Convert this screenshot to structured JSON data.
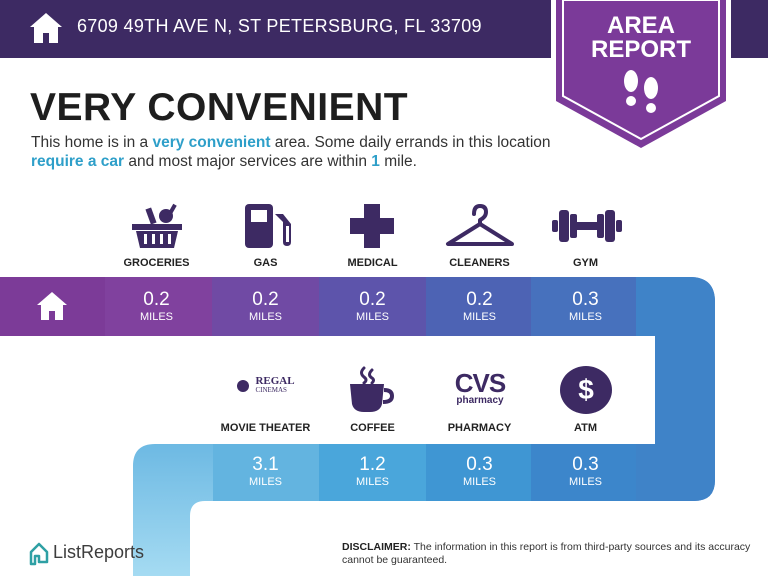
{
  "header": {
    "address": "6709 49TH AVE N, ST PETERSBURG, FL 33709"
  },
  "badge": {
    "line1": "AREA",
    "line2": "REPORT",
    "icon": "footprints-icon"
  },
  "title": "VERY CONVENIENT",
  "description": {
    "part1": "This home is in a ",
    "hl1": "very convenient",
    "part2": " area. Some daily errands in this location ",
    "hl2": "require a car",
    "part3": " and most major services are within ",
    "hl3": "1",
    "part4": " mile."
  },
  "row1": [
    {
      "label": "GROCERIES",
      "icon": "grocery-basket-icon",
      "value": "0.2",
      "unit": "MILES"
    },
    {
      "label": "GAS",
      "icon": "gas-pump-icon",
      "value": "0.2",
      "unit": "MILES"
    },
    {
      "label": "MEDICAL",
      "icon": "medical-cross-icon",
      "value": "0.2",
      "unit": "MILES"
    },
    {
      "label": "CLEANERS",
      "icon": "hanger-icon",
      "value": "0.2",
      "unit": "MILES"
    },
    {
      "label": "GYM",
      "icon": "dumbbell-icon",
      "value": "0.3",
      "unit": "MILES"
    }
  ],
  "row2": [
    {
      "label": "MOVIE THEATER",
      "icon": "regal-cinemas-logo",
      "logo_line1": "REGAL",
      "logo_line2": "CINEMAS",
      "value": "3.1",
      "unit": "MILES"
    },
    {
      "label": "COFFEE",
      "icon": "coffee-cup-icon",
      "value": "1.2",
      "unit": "MILES"
    },
    {
      "label": "PHARMACY",
      "icon": "cvs-pharmacy-logo",
      "logo_line1": "CVS",
      "logo_line2": "pharmacy",
      "value": "0.3",
      "unit": "MILES"
    },
    {
      "label": "ATM",
      "icon": "dollar-icon",
      "logo_line1": "$",
      "value": "0.3",
      "unit": "MILES"
    }
  ],
  "footer": {
    "brand": "ListReports",
    "disclaimer_label": "DISCLAIMER:",
    "disclaimer_text": " The information in this report is from third-party sources and its accuracy cannot be guaranteed."
  },
  "colors": {
    "header": "#3d2a63",
    "badge": "#7b3a99",
    "highlight": "#2e9fc9",
    "icon": "#3d2a63"
  }
}
